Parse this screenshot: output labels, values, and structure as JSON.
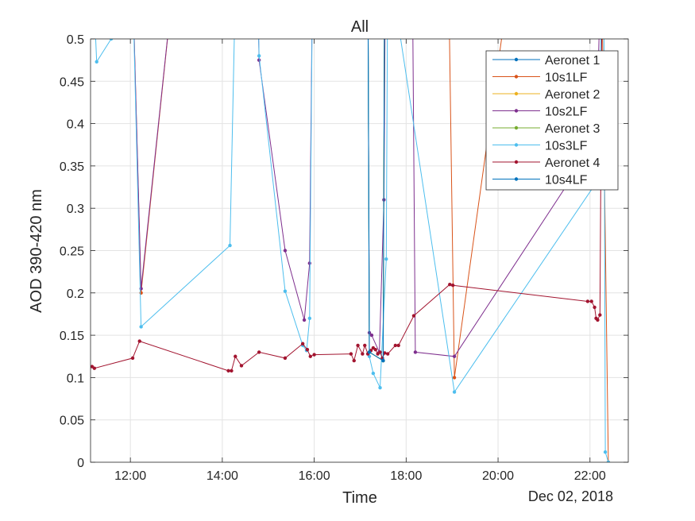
{
  "chart_data": {
    "type": "line",
    "title": "All",
    "xlabel": "Time",
    "ylabel": "AOD 390-420 nm",
    "date_label": "Dec 02, 2018",
    "xlim": [
      "11:08",
      "22:50"
    ],
    "ylim": [
      0,
      0.5
    ],
    "grid": true,
    "legend_position": "top-right",
    "x_ticks": [
      "12:00",
      "14:00",
      "16:00",
      "18:00",
      "20:00",
      "22:00"
    ],
    "y_ticks": [
      "0",
      "0.05",
      "0.1",
      "0.15",
      "0.2",
      "0.25",
      "0.3",
      "0.35",
      "0.4",
      "0.45",
      "0.5"
    ],
    "series": [
      {
        "name": "Aeronet 1",
        "color": "#0072BD",
        "points": [
          [
            "17:10",
            0.6
          ],
          [
            "17:12",
            0.13
          ],
          [
            "17:30",
            0.12
          ],
          [
            "17:32",
            0.6
          ]
        ]
      },
      {
        "name": "10s1LF",
        "color": "#D95319",
        "points": [
          [
            "12:02",
            0.6
          ],
          [
            "12:14",
            0.2
          ],
          [
            "13:00",
            0.6
          ],
          [
            "18:55",
            0.6
          ],
          [
            "19:03",
            0.1
          ],
          [
            "20:20",
            0.6
          ],
          [
            "22:15",
            0.6
          ],
          [
            "22:24",
            0.0
          ]
        ]
      },
      {
        "name": "Aeronet 2",
        "color": "#EDB120",
        "points": [
          [
            "17:10",
            0.6
          ],
          [
            "17:12",
            0.13
          ],
          [
            "17:30",
            0.12
          ],
          [
            "17:32",
            0.6
          ]
        ]
      },
      {
        "name": "10s2LF",
        "color": "#7E2F8E",
        "points": [
          [
            "12:02",
            0.6
          ],
          [
            "12:14",
            0.205
          ],
          [
            "13:00",
            0.6
          ],
          [
            "14:45",
            0.6
          ],
          [
            "14:48",
            0.475
          ],
          [
            "15:22",
            0.25
          ],
          [
            "15:47",
            0.168
          ],
          [
            "15:54",
            0.235
          ],
          [
            "15:58",
            0.6
          ],
          [
            "17:10",
            0.6
          ],
          [
            "17:12",
            0.153
          ],
          [
            "17:15",
            0.15
          ],
          [
            "17:25",
            0.13
          ],
          [
            "17:31",
            0.31
          ],
          [
            "17:33",
            0.6
          ],
          [
            "18:08",
            0.6
          ],
          [
            "18:12",
            0.13
          ],
          [
            "19:03",
            0.125
          ],
          [
            "22:08",
            0.38
          ],
          [
            "22:15",
            0.6
          ]
        ]
      },
      {
        "name": "Aeronet 3",
        "color": "#77AC30",
        "points": [
          [
            "17:10",
            0.6
          ],
          [
            "17:12",
            0.13
          ],
          [
            "17:30",
            0.12
          ],
          [
            "17:32",
            0.6
          ]
        ]
      },
      {
        "name": "10s3LF",
        "color": "#4DBEEE",
        "points": [
          [
            "11:10",
            0.6
          ],
          [
            "11:16",
            0.473
          ],
          [
            "11:35",
            0.5
          ],
          [
            "11:45",
            0.6
          ],
          [
            "12:02",
            0.6
          ],
          [
            "12:14",
            0.16
          ],
          [
            "14:10",
            0.256
          ],
          [
            "14:18",
            0.6
          ],
          [
            "14:45",
            0.6
          ],
          [
            "14:48",
            0.48
          ],
          [
            "15:22",
            0.202
          ],
          [
            "15:45",
            0.138
          ],
          [
            "15:50",
            0.132
          ],
          [
            "15:54",
            0.17
          ],
          [
            "15:58",
            0.6
          ],
          [
            "17:10",
            0.6
          ],
          [
            "17:12",
            0.125
          ],
          [
            "17:17",
            0.105
          ],
          [
            "17:26",
            0.088
          ],
          [
            "17:34",
            0.24
          ],
          [
            "17:36",
            0.6
          ],
          [
            "19:03",
            0.083
          ],
          [
            "22:08",
            0.33
          ],
          [
            "22:18",
            0.6
          ],
          [
            "22:20",
            0.012
          ],
          [
            "22:24",
            0.0
          ]
        ]
      },
      {
        "name": "Aeronet 4",
        "color": "#A2142F",
        "points": [
          [
            "11:10",
            0.113
          ],
          [
            "11:13",
            0.111
          ],
          [
            "12:03",
            0.123
          ],
          [
            "12:12",
            0.143
          ],
          [
            "14:08",
            0.108
          ],
          [
            "14:12",
            0.108
          ],
          [
            "14:17",
            0.125
          ],
          [
            "14:25",
            0.114
          ],
          [
            "14:48",
            0.13
          ],
          [
            "15:22",
            0.123
          ],
          [
            "15:45",
            0.14
          ],
          [
            "15:51",
            0.133
          ],
          [
            "15:55",
            0.125
          ],
          [
            "16:00",
            0.127
          ],
          [
            "16:48",
            0.128
          ],
          [
            "16:52",
            0.12
          ],
          [
            "16:57",
            0.138
          ],
          [
            "17:03",
            0.128
          ],
          [
            "17:06",
            0.138
          ],
          [
            "17:10",
            0.128
          ],
          [
            "17:14",
            0.132
          ],
          [
            "17:17",
            0.135
          ],
          [
            "17:20",
            0.133
          ],
          [
            "17:23",
            0.128
          ],
          [
            "17:26",
            0.13
          ],
          [
            "17:29",
            0.123
          ],
          [
            "17:32",
            0.129
          ],
          [
            "17:36",
            0.128
          ],
          [
            "17:46",
            0.138
          ],
          [
            "17:50",
            0.138
          ],
          [
            "18:10",
            0.173
          ],
          [
            "18:57",
            0.21
          ],
          [
            "19:01",
            0.209
          ],
          [
            "21:57",
            0.19
          ],
          [
            "22:02",
            0.19
          ],
          [
            "22:06",
            0.183
          ],
          [
            "22:08",
            0.17
          ],
          [
            "22:10",
            0.168
          ],
          [
            "22:13",
            0.174
          ],
          [
            "22:16",
            0.6
          ]
        ]
      },
      {
        "name": "10s4LF",
        "color": "#0072BD",
        "points": [
          [
            "17:10",
            0.6
          ],
          [
            "17:12",
            0.13
          ],
          [
            "17:30",
            0.12
          ],
          [
            "17:32",
            0.6
          ]
        ]
      }
    ]
  }
}
